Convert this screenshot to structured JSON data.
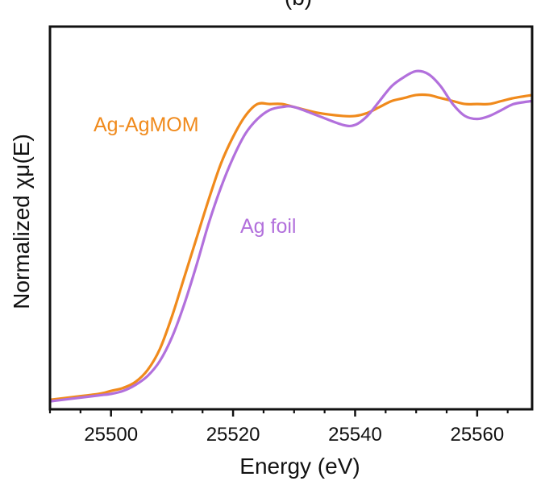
{
  "chart_data": {
    "type": "line",
    "panel_label": "(b)",
    "xlabel": "Energy (eV)",
    "ylabel": "Normalized χμ(E)",
    "xlim": [
      25490,
      25569
    ],
    "ylim": [
      0,
      1.1
    ],
    "xticks": [
      25500,
      25520,
      25540,
      25560
    ],
    "xtick_labels": [
      "25500",
      "25520",
      "25540",
      "25560"
    ],
    "grid": false,
    "series": [
      {
        "name": "Ag-AgMOM",
        "label": "Ag-AgMOM",
        "color": "#F08A1C",
        "x": [
          25490,
          25494,
          25498,
          25500,
          25502,
          25504,
          25506,
          25508,
          25510,
          25512,
          25514,
          25516,
          25518,
          25520,
          25522,
          25524,
          25526,
          25528,
          25530,
          25534,
          25538,
          25540,
          25542,
          25544,
          25546,
          25548,
          25550,
          25552,
          25554,
          25556,
          25558,
          25560,
          25562,
          25564,
          25566,
          25569
        ],
        "y": [
          0.01,
          0.02,
          0.03,
          0.04,
          0.05,
          0.07,
          0.11,
          0.18,
          0.29,
          0.42,
          0.55,
          0.68,
          0.8,
          0.89,
          0.96,
          1.0,
          1.0,
          1.0,
          0.99,
          0.97,
          0.96,
          0.96,
          0.97,
          0.99,
          1.01,
          1.02,
          1.03,
          1.03,
          1.02,
          1.01,
          1.0,
          1.0,
          1.0,
          1.01,
          1.02,
          1.03
        ]
      },
      {
        "name": "Ag foil",
        "label": "Ag foil",
        "color": "#B270DC",
        "x": [
          25490,
          25494,
          25498,
          25500,
          25502,
          25504,
          25506,
          25508,
          25510,
          25512,
          25514,
          25516,
          25518,
          25520,
          25522,
          25524,
          25526,
          25528,
          25530,
          25534,
          25538,
          25540,
          25542,
          25544,
          25546,
          25548,
          25550,
          25552,
          25554,
          25556,
          25558,
          25560,
          25562,
          25564,
          25566,
          25569
        ],
        "y": [
          0.005,
          0.015,
          0.025,
          0.03,
          0.04,
          0.06,
          0.09,
          0.14,
          0.22,
          0.33,
          0.46,
          0.6,
          0.72,
          0.82,
          0.9,
          0.95,
          0.98,
          0.99,
          0.99,
          0.96,
          0.93,
          0.93,
          0.96,
          1.01,
          1.06,
          1.09,
          1.11,
          1.1,
          1.06,
          1.0,
          0.96,
          0.95,
          0.96,
          0.98,
          1.0,
          1.01
        ]
      }
    ]
  }
}
